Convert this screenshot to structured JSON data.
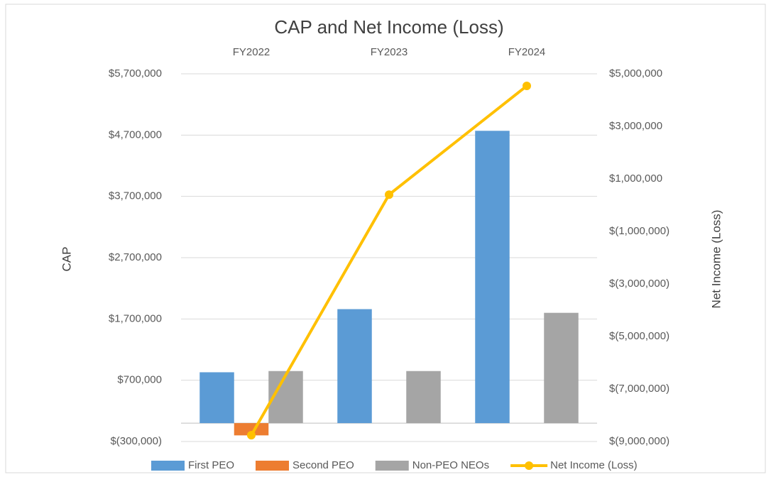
{
  "chart_data": {
    "type": "bar",
    "title": "CAP and Net Income (Loss)",
    "y_label": "CAP",
    "y2_label": "Net Income (Loss)",
    "categories": [
      "FY2022",
      "FY2023",
      "FY2024"
    ],
    "series": [
      {
        "name": "First PEO",
        "color": "#5b9bd5",
        "values": [
          830000,
          1860000,
          4770000
        ]
      },
      {
        "name": "Second PEO",
        "color": "#ed7d31",
        "values": [
          -200000,
          null,
          null
        ]
      },
      {
        "name": "Non-PEO NEOs",
        "color": "#a5a5a5",
        "values": [
          850000,
          850000,
          1800000
        ]
      },
      {
        "name": "Net Income (Loss)",
        "color": "#ffc000",
        "type": "line",
        "axis": "y2",
        "values": [
          -8760000,
          400000,
          4540000
        ]
      }
    ],
    "ylim": [
      -300000,
      5700000
    ],
    "yticks": [
      {
        "value": -300000,
        "label": "$(300,000)"
      },
      {
        "value": 700000,
        "label": "$700,000"
      },
      {
        "value": 1700000,
        "label": "$1,700,000"
      },
      {
        "value": 2700000,
        "label": "$2,700,000"
      },
      {
        "value": 3700000,
        "label": "$3,700,000"
      },
      {
        "value": 4700000,
        "label": "$4,700,000"
      },
      {
        "value": 5700000,
        "label": "$5,700,000"
      }
    ],
    "y2lim": [
      -9000000,
      5000000
    ],
    "y2ticks": [
      {
        "value": -9000000,
        "label": "$(9,000,000)"
      },
      {
        "value": -7000000,
        "label": "$(7,000,000)"
      },
      {
        "value": -5000000,
        "label": "$(5,000,000)"
      },
      {
        "value": -3000000,
        "label": "$(3,000,000)"
      },
      {
        "value": -1000000,
        "label": "$(1,000,000)"
      },
      {
        "value": 1000000,
        "label": "$1,000,000"
      },
      {
        "value": 3000000,
        "label": "$3,000,000"
      },
      {
        "value": 5000000,
        "label": "$5,000,000"
      }
    ],
    "grid": true,
    "legend": "bottom"
  }
}
